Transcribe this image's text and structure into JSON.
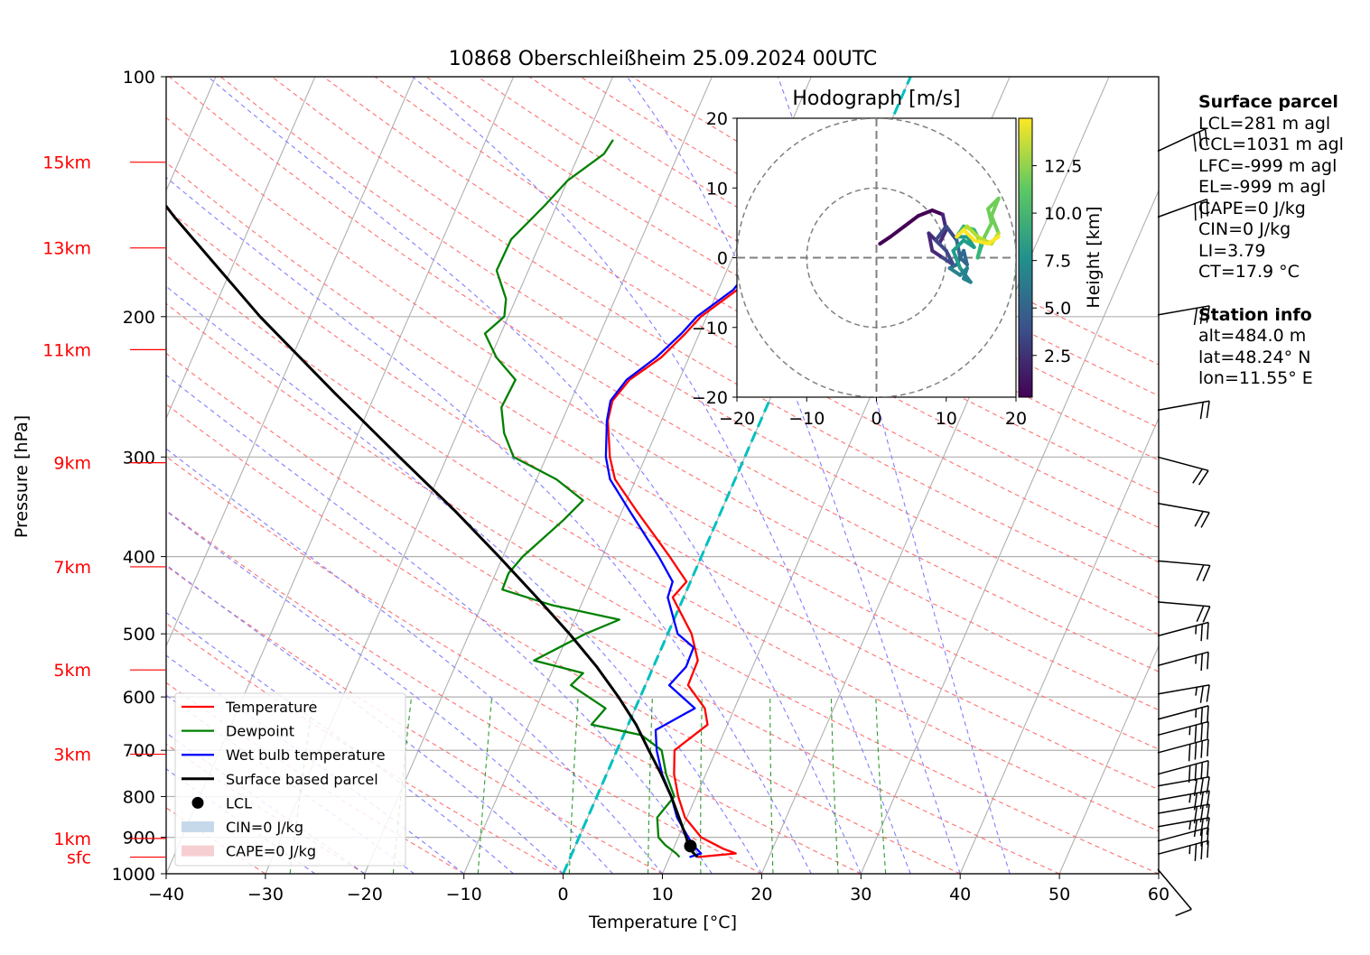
{
  "chart_data": {
    "type": "line",
    "title": "10868 Oberschleißheim 25.09.2024 00UTC",
    "xlabel": "Temperature [°C]",
    "ylabel": "Pressure [hPa]",
    "xlim": [
      -40,
      60
    ],
    "ylim": [
      1000,
      100
    ],
    "y_scale": "log",
    "x_ticks": [
      "−40",
      "−30",
      "−20",
      "−10",
      "0",
      "10",
      "20",
      "30",
      "40",
      "50",
      "60"
    ],
    "y_ticks": [
      "100",
      "200",
      "300",
      "400",
      "500",
      "600",
      "700",
      "800",
      "900",
      "1000"
    ],
    "height_labels": [
      {
        "label": "15km",
        "p": 128
      },
      {
        "label": "13km",
        "p": 164
      },
      {
        "label": "11km",
        "p": 220
      },
      {
        "label": "9km",
        "p": 305
      },
      {
        "label": "7km",
        "p": 412
      },
      {
        "label": "5km",
        "p": 555
      },
      {
        "label": "3km",
        "p": 708
      },
      {
        "label": "1km",
        "p": 903
      },
      {
        "label": "sfc",
        "p": 953
      }
    ],
    "legend_position": "lower-left",
    "legend": [
      {
        "label": "Temperature",
        "color": "#ff0000",
        "kind": "line"
      },
      {
        "label": "Dewpoint",
        "color": "#008000",
        "kind": "line"
      },
      {
        "label": "Wet bulb temperature",
        "color": "#0000ff",
        "kind": "line"
      },
      {
        "label": "Surface based parcel",
        "color": "#000000",
        "kind": "line"
      },
      {
        "label": "LCL",
        "color": "#000000",
        "kind": "dot"
      },
      {
        "label": "CIN=0 J/kg",
        "color": "#c6d9ea",
        "kind": "patch"
      },
      {
        "label": "CAPE=0 J/kg",
        "color": "#f6cfd2",
        "kind": "patch"
      }
    ],
    "series": [
      {
        "name": "Temperature",
        "color": "#ff0000",
        "points": [
          [
            953,
            12.8
          ],
          [
            943,
            16.5
          ],
          [
            930,
            15.0
          ],
          [
            900,
            12.3
          ],
          [
            850,
            9.8
          ],
          [
            800,
            8.2
          ],
          [
            750,
            6.8
          ],
          [
            700,
            5.8
          ],
          [
            650,
            8.0
          ],
          [
            620,
            7.0
          ],
          [
            580,
            4.3
          ],
          [
            540,
            4.2
          ],
          [
            500,
            2.4
          ],
          [
            450,
            -1.1
          ],
          [
            430,
            -0.4
          ],
          [
            400,
            -3.2
          ],
          [
            350,
            -8.6
          ],
          [
            320,
            -12.1
          ],
          [
            300,
            -13.6
          ],
          [
            270,
            -15.4
          ],
          [
            255,
            -15.8
          ],
          [
            240,
            -15.0
          ],
          [
            225,
            -12.8
          ],
          [
            210,
            -11.4
          ],
          [
            200,
            -10.6
          ],
          [
            185,
            -8.1
          ],
          [
            170,
            -7.2
          ],
          [
            158,
            -5.7
          ],
          [
            150,
            -5.0
          ],
          [
            140,
            -4.6
          ],
          [
            130,
            -2.6
          ],
          [
            125,
            -0.8
          ]
        ]
      },
      {
        "name": "Dewpoint",
        "color": "#008000",
        "points": [
          [
            953,
            11.0
          ],
          [
            943,
            10.5
          ],
          [
            920,
            9.0
          ],
          [
            900,
            8.0
          ],
          [
            850,
            7.0
          ],
          [
            800,
            7.8
          ],
          [
            750,
            6.0
          ],
          [
            700,
            4.5
          ],
          [
            670,
            1.8
          ],
          [
            650,
            -3.7
          ],
          [
            620,
            -3.0
          ],
          [
            580,
            -7.5
          ],
          [
            560,
            -6.8
          ],
          [
            540,
            -12.3
          ],
          [
            500,
            -8.3
          ],
          [
            480,
            -5.5
          ],
          [
            460,
            -13.0
          ],
          [
            440,
            -18.6
          ],
          [
            420,
            -18.7
          ],
          [
            400,
            -18.0
          ],
          [
            360,
            -15.5
          ],
          [
            340,
            -14.4
          ],
          [
            320,
            -18.0
          ],
          [
            300,
            -23.3
          ],
          [
            280,
            -25.3
          ],
          [
            260,
            -26.7
          ],
          [
            240,
            -26.5
          ],
          [
            225,
            -29.4
          ],
          [
            210,
            -31.6
          ],
          [
            200,
            -30.4
          ],
          [
            190,
            -31.0
          ],
          [
            175,
            -33.2
          ],
          [
            160,
            -33.1
          ],
          [
            145,
            -31.2
          ],
          [
            135,
            -30.0
          ],
          [
            125,
            -27.5
          ],
          [
            120,
            -27.2
          ]
        ]
      },
      {
        "name": "Wet bulb temperature",
        "color": "#0000ff",
        "points": [
          [
            953,
            12.0
          ],
          [
            943,
            13.0
          ],
          [
            920,
            11.8
          ],
          [
            900,
            11.0
          ],
          [
            850,
            9.0
          ],
          [
            800,
            7.5
          ],
          [
            750,
            5.6
          ],
          [
            700,
            4.0
          ],
          [
            660,
            3.0
          ],
          [
            620,
            6.0
          ],
          [
            580,
            2.4
          ],
          [
            550,
            3.3
          ],
          [
            520,
            3.2
          ],
          [
            500,
            1.0
          ],
          [
            450,
            -1.6
          ],
          [
            430,
            -1.8
          ],
          [
            400,
            -4.3
          ],
          [
            350,
            -9.3
          ],
          [
            320,
            -12.6
          ],
          [
            300,
            -14.0
          ],
          [
            270,
            -15.5
          ],
          [
            255,
            -16.0
          ],
          [
            240,
            -15.3
          ],
          [
            225,
            -13.3
          ],
          [
            210,
            -11.8
          ],
          [
            200,
            -11.0
          ],
          [
            185,
            -8.5
          ],
          [
            170,
            -7.4
          ],
          [
            158,
            -6.0
          ],
          [
            150,
            -5.3
          ],
          [
            140,
            -4.9
          ],
          [
            130,
            -2.9
          ],
          [
            125,
            -1.1
          ]
        ]
      },
      {
        "name": "Surface based parcel",
        "color": "#000000",
        "points": [
          [
            953,
            12.8
          ],
          [
            930,
            11.6
          ],
          [
            900,
            10.8
          ],
          [
            850,
            9.2
          ],
          [
            800,
            7.5
          ],
          [
            750,
            5.5
          ],
          [
            700,
            3.2
          ],
          [
            650,
            0.8
          ],
          [
            600,
            -2.2
          ],
          [
            550,
            -5.7
          ],
          [
            500,
            -9.9
          ],
          [
            450,
            -14.8
          ],
          [
            400,
            -20.4
          ],
          [
            350,
            -26.9
          ],
          [
            300,
            -34.8
          ],
          [
            250,
            -44.0
          ],
          [
            200,
            -55.0
          ],
          [
            150,
            -68.0
          ],
          [
            100,
            -85.0
          ]
        ]
      }
    ],
    "lcl": {
      "p": 923,
      "t": 11.6
    },
    "wind_barbs": [
      {
        "p": 987,
        "dir": 320,
        "kt": 10
      },
      {
        "p": 945,
        "dir": 255,
        "kt": 35
      },
      {
        "p": 910,
        "dir": 255,
        "kt": 20
      },
      {
        "p": 873,
        "dir": 260,
        "kt": 35
      },
      {
        "p": 840,
        "dir": 260,
        "kt": 30
      },
      {
        "p": 808,
        "dir": 260,
        "kt": 35
      },
      {
        "p": 776,
        "dir": 260,
        "kt": 30
      },
      {
        "p": 750,
        "dir": 255,
        "kt": 40
      },
      {
        "p": 705,
        "dir": 255,
        "kt": 40
      },
      {
        "p": 670,
        "dir": 255,
        "kt": 35
      },
      {
        "p": 640,
        "dir": 255,
        "kt": 25
      },
      {
        "p": 595,
        "dir": 260,
        "kt": 25
      },
      {
        "p": 548,
        "dir": 255,
        "kt": 25
      },
      {
        "p": 503,
        "dir": 255,
        "kt": 25
      },
      {
        "p": 456,
        "dir": 275,
        "kt": 20
      },
      {
        "p": 405,
        "dir": 275,
        "kt": 20
      },
      {
        "p": 343,
        "dir": 280,
        "kt": 20
      },
      {
        "p": 300,
        "dir": 285,
        "kt": 20
      },
      {
        "p": 262,
        "dir": 260,
        "kt": 20
      },
      {
        "p": 199,
        "dir": 260,
        "kt": 30
      },
      {
        "p": 150,
        "dir": 250,
        "kt": 30
      },
      {
        "p": 124,
        "dir": 245,
        "kt": 30
      }
    ],
    "hodograph": {
      "title": "Hodograph [m/s]",
      "xlim": [
        -20,
        20
      ],
      "ylim": [
        -20,
        20
      ],
      "ticks": [
        "−20",
        "−10",
        "0",
        "10",
        "20"
      ],
      "rings": [
        10,
        20
      ],
      "colorbar_label": "Height [km]",
      "colorbar_ticks": [
        "2.5",
        "5.0",
        "7.5",
        "10.0",
        "12.5"
      ],
      "height_range": [
        0.3,
        15
      ],
      "points": [
        [
          0.5,
          2
        ],
        [
          2,
          3
        ],
        [
          4,
          4.5
        ],
        [
          6,
          6
        ],
        [
          8,
          6.8
        ],
        [
          9.5,
          6.2
        ],
        [
          10,
          4
        ],
        [
          9,
          2
        ],
        [
          7.5,
          3.5
        ],
        [
          8,
          1
        ],
        [
          9.5,
          0
        ],
        [
          11,
          -1
        ],
        [
          10,
          1
        ],
        [
          8.5,
          2.5
        ],
        [
          10,
          4.5
        ],
        [
          11.5,
          2.5
        ],
        [
          12,
          0
        ],
        [
          13,
          -1
        ],
        [
          12.5,
          1
        ],
        [
          11.5,
          -1
        ],
        [
          10.5,
          -1.5
        ],
        [
          12,
          -2.5
        ],
        [
          13,
          -1.5
        ],
        [
          12.5,
          -3
        ],
        [
          13.5,
          -3.5
        ],
        [
          12,
          -1.5
        ],
        [
          11,
          1
        ],
        [
          12.5,
          2.5
        ],
        [
          14,
          1.5
        ],
        [
          13,
          3
        ],
        [
          11.5,
          3
        ],
        [
          12.5,
          4.5
        ],
        [
          14,
          4
        ],
        [
          15,
          2
        ],
        [
          14.5,
          0
        ],
        [
          15.5,
          3
        ],
        [
          16.5,
          5
        ],
        [
          16,
          7
        ],
        [
          17.5,
          8.5
        ],
        [
          16.5,
          6
        ],
        [
          17.5,
          3.5
        ],
        [
          16.5,
          2
        ],
        [
          14.5,
          3
        ],
        [
          13,
          4.5
        ],
        [
          12,
          3.5
        ],
        [
          11.5,
          3
        ],
        [
          12.5,
          4
        ],
        [
          13,
          3.5
        ],
        [
          14,
          2.5
        ],
        [
          16,
          2
        ],
        [
          17.5,
          3
        ]
      ]
    }
  },
  "info": {
    "surface_title": "Surface parcel",
    "surface_lines": [
      "LCL=281 m agl",
      "CCL=1031 m agl",
      "LFC=-999 m agl",
      "EL=-999 m agl",
      "CAPE=0 J/kg",
      "CIN=0 J/kg",
      "LI=3.79",
      "CT=17.9 °C"
    ],
    "station_title": "Station info",
    "station_lines": [
      "alt=484.0 m",
      "lat=48.24° N",
      "lon=11.55° E"
    ]
  }
}
